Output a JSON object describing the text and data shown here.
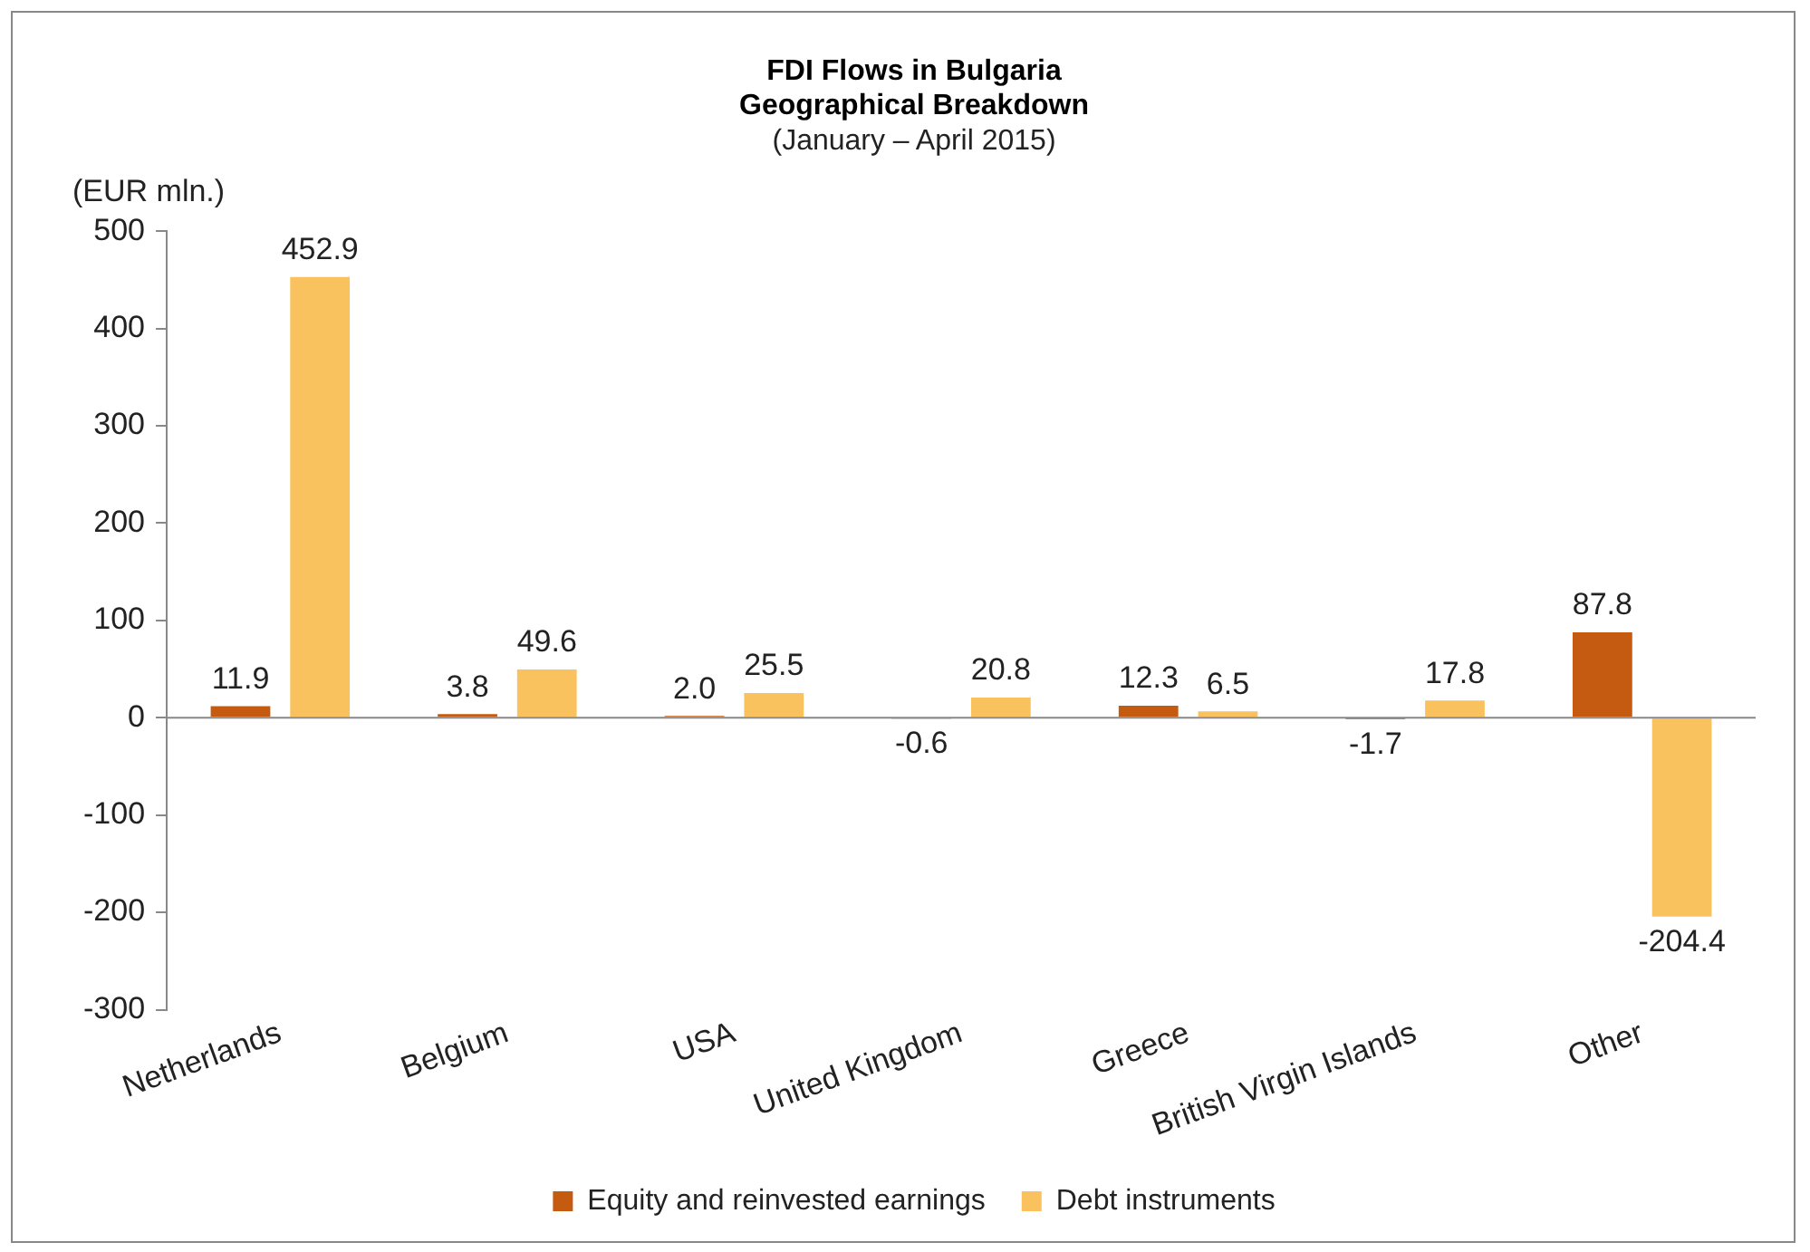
{
  "chart_data": {
    "type": "bar",
    "title": "FDI Flows in Bulgaria\nGeographical Breakdown",
    "subtitle": "(January – April 2015)",
    "ylabel": "(EUR mln.)",
    "categories": [
      "Netherlands",
      "Belgium",
      "USA",
      "United Kingdom",
      "Greece",
      "British Virgin Islands",
      "Other"
    ],
    "series": [
      {
        "name": "Equity and reinvested earnings",
        "color": "#c55a11",
        "values": [
          11.9,
          3.8,
          2.0,
          -0.6,
          12.3,
          -1.7,
          87.8
        ],
        "value_labels": [
          "11.9",
          "3.8",
          "2.0",
          "-0.6",
          "12.3",
          "-1.7",
          "87.8"
        ]
      },
      {
        "name": "Debt instruments",
        "color": "#f9c25f",
        "values": [
          452.9,
          49.6,
          25.5,
          20.8,
          6.5,
          17.8,
          -204.4
        ],
        "value_labels": [
          "452.9",
          "49.6",
          "25.5",
          "20.8",
          "6.5",
          "17.8",
          "-204.4"
        ]
      }
    ],
    "ylim": [
      -300,
      500
    ],
    "yticks": [
      -300,
      -200,
      -100,
      0,
      100,
      200,
      300,
      400,
      500
    ],
    "grid": false,
    "legend": "bottom",
    "ref_lines": [
      {
        "axis": "y",
        "value": 0,
        "color": "#888888"
      }
    ]
  }
}
